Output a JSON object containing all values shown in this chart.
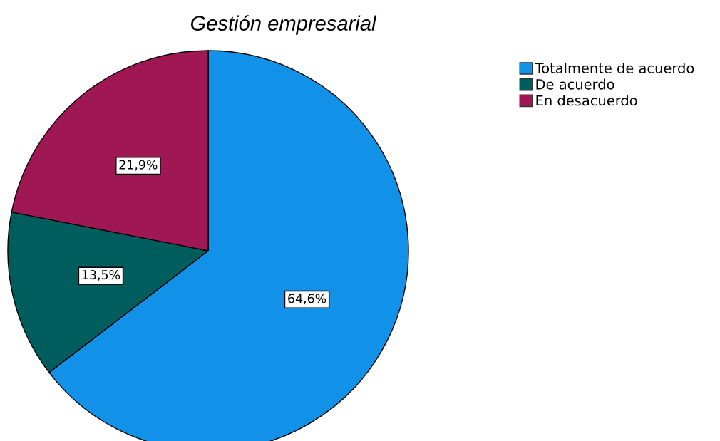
{
  "chart_data": {
    "type": "pie",
    "title": "Gestión empresarial",
    "categories": [
      "Totalmente de acuerdo",
      "De acuerdo",
      "En desacuerdo"
    ],
    "values": [
      64.6,
      13.5,
      21.9
    ],
    "colors": [
      "#1192e8",
      "#005d5d",
      "#9f1853"
    ],
    "value_labels": [
      "64,6%",
      "13,5%",
      "21,9%"
    ],
    "legend": "top right"
  }
}
